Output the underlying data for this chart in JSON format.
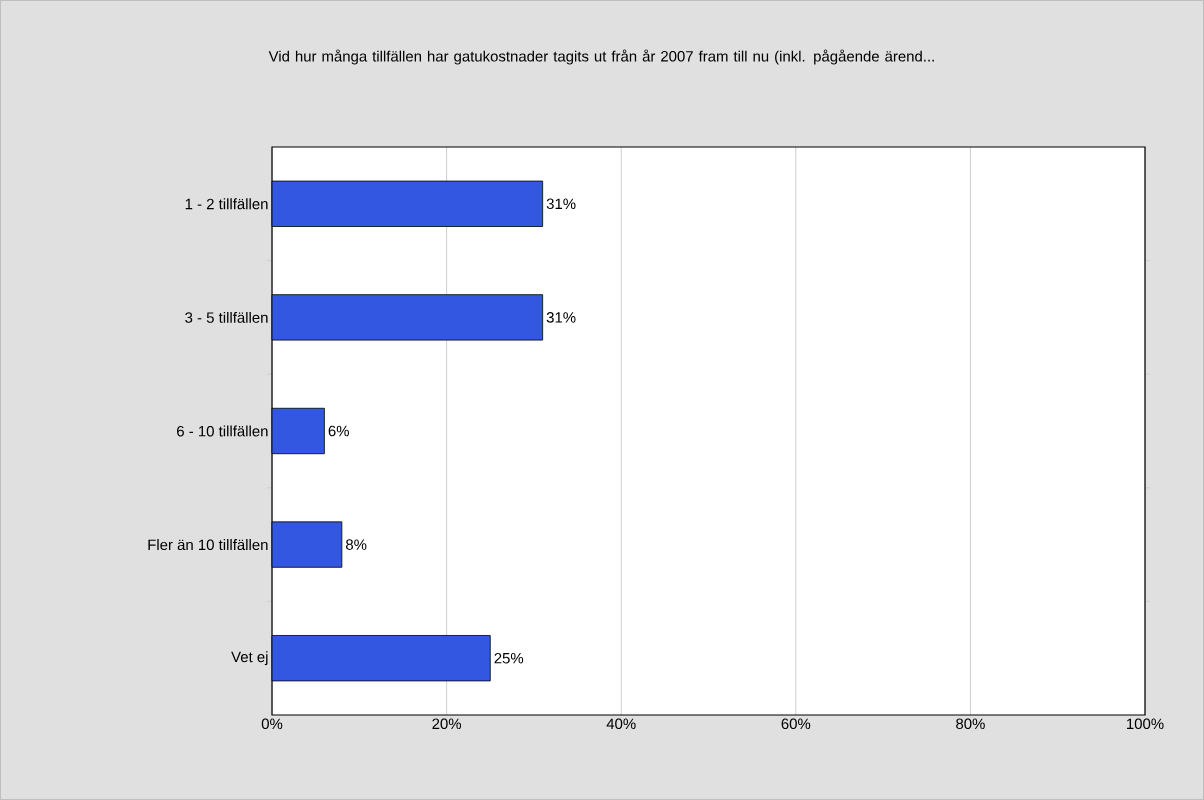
{
  "chart_data": {
    "type": "bar",
    "orientation": "horizontal",
    "title": "Vid hur många tillfällen har gatukostnader tagits ut från år 2007 fram till nu (inkl. pågående ärend...",
    "categories": [
      "1 - 2 tillfällen",
      "3 - 5 tillfällen",
      "6 - 10 tillfällen",
      "Fler än 10 tillfällen",
      "Vet ej"
    ],
    "values": [
      31,
      31,
      6,
      8,
      25
    ],
    "value_labels": [
      "31%",
      "31%",
      "6%",
      "8%",
      "25%"
    ],
    "color": "#3357e0",
    "xlim": [
      0,
      100
    ],
    "xticks": [
      {
        "value": 0,
        "label": "0%"
      },
      {
        "value": 20,
        "label": "20%"
      },
      {
        "value": 40,
        "label": "40%"
      },
      {
        "value": 60,
        "label": "60%"
      },
      {
        "value": 80,
        "label": "80%"
      },
      {
        "value": 100,
        "label": "100%"
      }
    ],
    "grid": "x"
  }
}
